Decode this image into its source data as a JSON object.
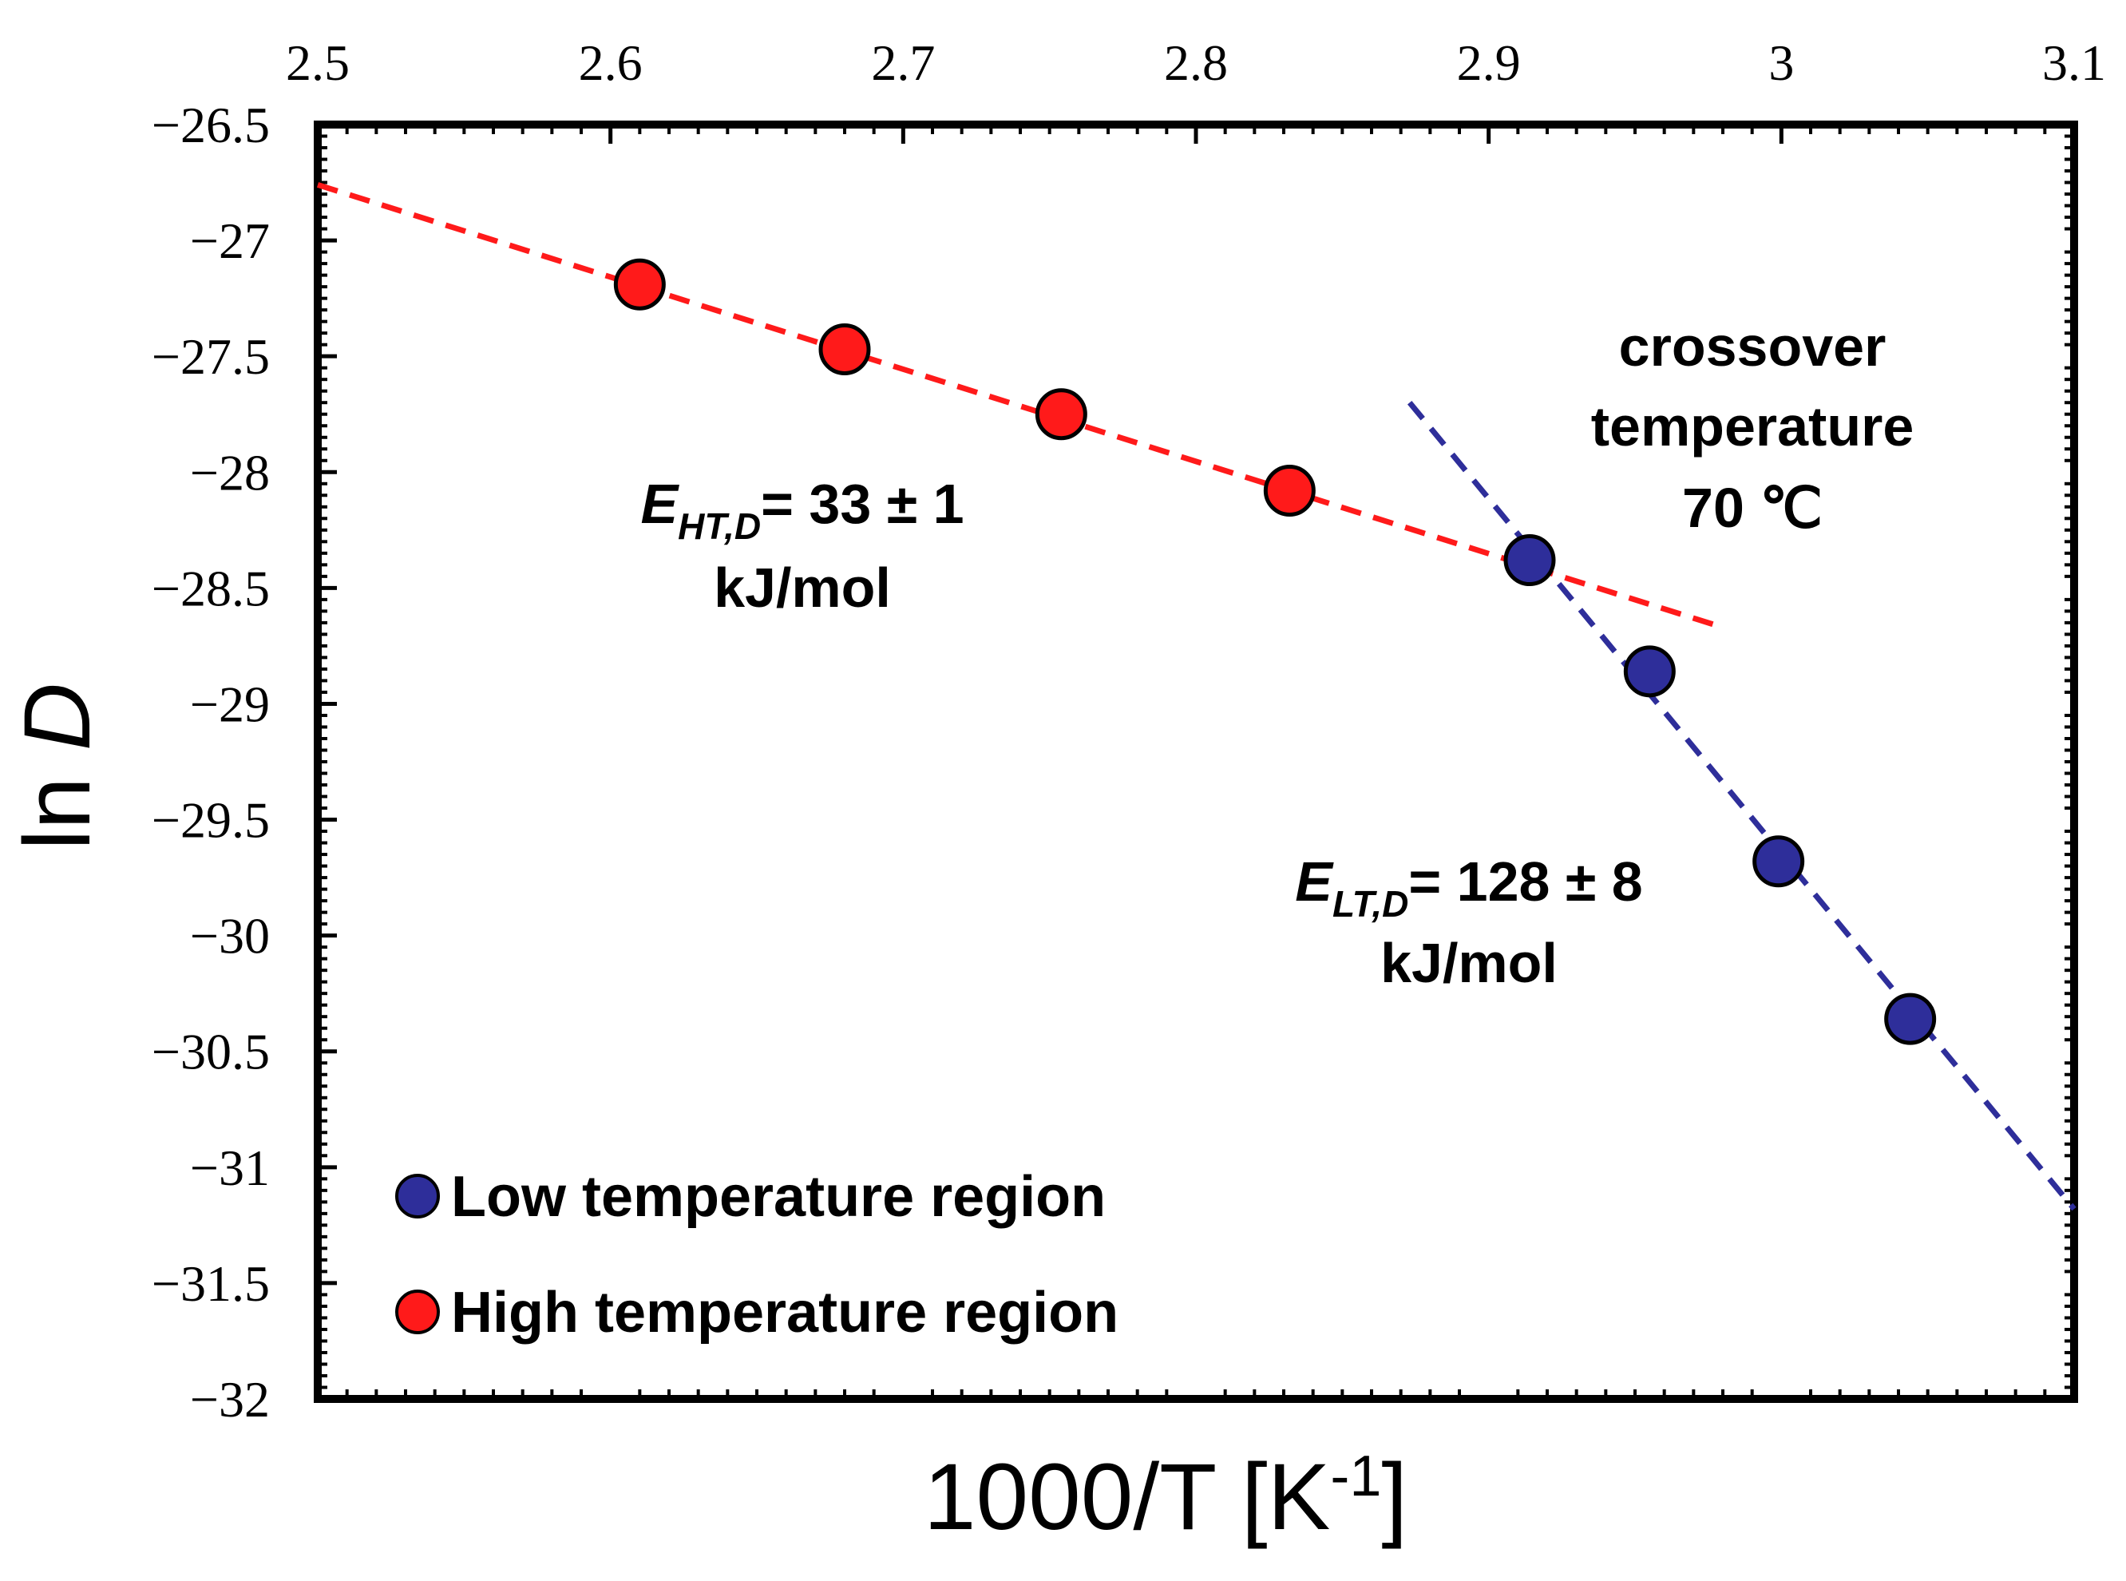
{
  "chart_data": {
    "type": "scatter",
    "title": "",
    "xlabel": "1000/T [K",
    "xlabel_sup": "-1",
    "xlabel_end": "]",
    "ylabel_prefix": "ln ",
    "ylabel_var": "D",
    "xlim": [
      2.5,
      3.1
    ],
    "ylim": [
      -32,
      -26.5
    ],
    "x_ticks": [
      2.5,
      2.6,
      2.7,
      2.8,
      2.9,
      3.0,
      3.1
    ],
    "x_tick_labels": [
      "2.5",
      "2.6",
      "2.7",
      "2.8",
      "2.9",
      "3",
      "3.1"
    ],
    "y_ticks": [
      -26.5,
      -27,
      -27.5,
      -28,
      -28.5,
      -29,
      -29.5,
      -30,
      -30.5,
      -31,
      -31.5,
      -32
    ],
    "y_tick_labels": [
      "−26.5",
      "−27",
      "−27.5",
      "−28",
      "−28.5",
      "−29",
      "−29.5",
      "−30",
      "−30.5",
      "−31",
      "−31.5",
      "−32"
    ],
    "x_axis_position": "top",
    "series": [
      {
        "name": "Low temperature region",
        "color": "#2e2e9a",
        "points": [
          [
            2.914,
            -28.38
          ],
          [
            2.955,
            -28.86
          ],
          [
            2.999,
            -29.68
          ],
          [
            3.044,
            -30.36
          ]
        ],
        "fit": {
          "x": [
            2.873,
            3.1
          ],
          "y": [
            -27.7,
            -31.18
          ],
          "color": "#2e2e9a",
          "style": "dashed"
        }
      },
      {
        "name": "High temperature region",
        "color": "#ff1a1a",
        "points": [
          [
            2.61,
            -27.19
          ],
          [
            2.68,
            -27.47
          ],
          [
            2.754,
            -27.75
          ],
          [
            2.832,
            -28.08
          ]
        ],
        "fit": {
          "x": [
            2.5,
            2.98
          ],
          "y": [
            -26.76,
            -28.67
          ],
          "color": "#ff1a1a",
          "style": "dashed"
        }
      }
    ],
    "annotations": {
      "ht_energy": {
        "symbol": "E",
        "subscript": "HT,D",
        "value": "= 33 ± 1",
        "unit": "kJ/mol"
      },
      "lt_energy": {
        "symbol": "E",
        "subscript": "LT,D",
        "value": "= 128 ± 8",
        "unit": "kJ/mol"
      },
      "crossover": {
        "line1": "crossover",
        "line2": "temperature",
        "line3": "70 ℃"
      }
    },
    "legend": {
      "position": "bottom-left",
      "entries": [
        "Low temperature region",
        "High temperature region"
      ]
    }
  }
}
